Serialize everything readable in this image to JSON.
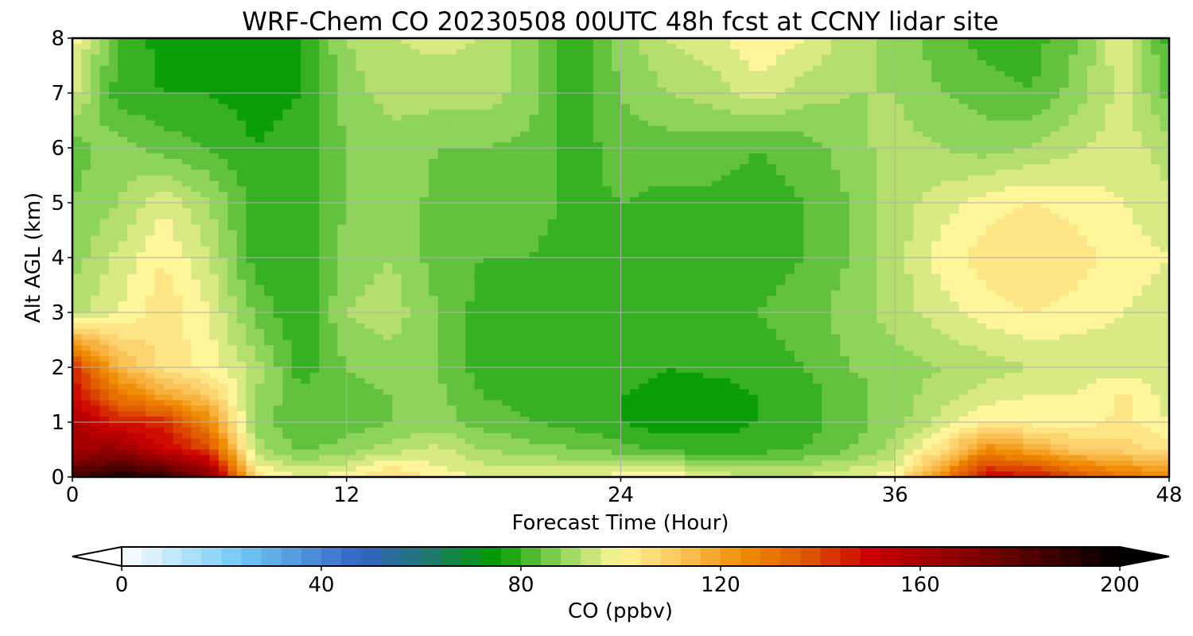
{
  "chart_data": {
    "type": "heatmap",
    "title": "WRF-Chem CO  20230508 00UTC 48h fcst at CCNY lidar site",
    "xlabel": "Forecast Time (Hour)",
    "ylabel": "Alt AGL (km)",
    "xlim": [
      0,
      48
    ],
    "ylim": [
      0,
      8
    ],
    "x_ticks": [
      "0",
      "12",
      "24",
      "36",
      "48"
    ],
    "y_ticks": [
      "0",
      "1",
      "2",
      "3",
      "4",
      "5",
      "6",
      "7",
      "8"
    ],
    "grid": true,
    "colorbar": {
      "label": "CO  (ppbv)",
      "range": [
        0,
        200
      ],
      "ticks": [
        "0",
        "40",
        "80",
        "120",
        "160",
        "200"
      ],
      "extend": "both",
      "orientation": "horizontal",
      "colors": [
        {
          "value": 0,
          "color": "#ffffff"
        },
        {
          "value": 24,
          "color": "#70c8f4"
        },
        {
          "value": 48,
          "color": "#3363c4"
        },
        {
          "value": 62,
          "color": "#1e7a6a"
        },
        {
          "value": 75,
          "color": "#009a00"
        },
        {
          "value": 88,
          "color": "#8ed45a"
        },
        {
          "value": 100,
          "color": "#fff59a"
        },
        {
          "value": 112,
          "color": "#fbc45a"
        },
        {
          "value": 125,
          "color": "#f08a00"
        },
        {
          "value": 137,
          "color": "#e05a00"
        },
        {
          "value": 150,
          "color": "#cc0000"
        },
        {
          "value": 175,
          "color": "#700000"
        },
        {
          "value": 200,
          "color": "#000000"
        }
      ]
    },
    "hours": [
      0,
      2,
      4,
      6,
      8,
      10,
      12,
      14,
      16,
      18,
      20,
      22,
      24,
      26,
      28,
      30,
      32,
      34,
      36,
      38,
      40,
      42,
      44,
      46,
      48
    ],
    "altitudes_km": [
      0,
      0.5,
      1,
      1.5,
      2,
      3,
      4,
      5,
      6,
      7,
      8
    ],
    "co_ppbv": [
      [
        185,
        195,
        190,
        170,
        105,
        98,
        100,
        108,
        100,
        98,
        97,
        98,
        100,
        102,
        96,
        95,
        95,
        97,
        100,
        125,
        150,
        148,
        138,
        130,
        125
      ],
      [
        160,
        165,
        150,
        140,
        92,
        85,
        88,
        92,
        95,
        90,
        88,
        86,
        84,
        80,
        80,
        80,
        82,
        86,
        92,
        105,
        125,
        118,
        110,
        108,
        105
      ],
      [
        160,
        145,
        145,
        125,
        88,
        82,
        84,
        86,
        88,
        84,
        82,
        80,
        78,
        76,
        76,
        78,
        80,
        84,
        88,
        95,
        102,
        100,
        100,
        103,
        98
      ],
      [
        150,
        130,
        118,
        110,
        90,
        83,
        85,
        86,
        87,
        82,
        80,
        80,
        78,
        76,
        76,
        78,
        80,
        84,
        88,
        92,
        96,
        98,
        98,
        103,
        96
      ],
      [
        145,
        115,
        105,
        100,
        92,
        80,
        86,
        88,
        86,
        80,
        79,
        80,
        80,
        78,
        79,
        80,
        82,
        86,
        88,
        90,
        92,
        94,
        95,
        96,
        94
      ],
      [
        92,
        98,
        105,
        98,
        85,
        78,
        90,
        92,
        86,
        80,
        80,
        80,
        81,
        80,
        80,
        82,
        84,
        88,
        92,
        96,
        100,
        102,
        100,
        98,
        96
      ],
      [
        88,
        95,
        102,
        94,
        80,
        78,
        88,
        90,
        84,
        82,
        82,
        80,
        80,
        80,
        80,
        80,
        82,
        86,
        92,
        100,
        104,
        106,
        104,
        100,
        98
      ],
      [
        86,
        90,
        97,
        90,
        80,
        79,
        86,
        88,
        85,
        84,
        84,
        81,
        82,
        81,
        81,
        80,
        82,
        86,
        92,
        96,
        100,
        102,
        100,
        98,
        95
      ],
      [
        84,
        88,
        84,
        82,
        78,
        80,
        86,
        88,
        86,
        86,
        85,
        80,
        84,
        84,
        84,
        82,
        84,
        88,
        92,
        90,
        88,
        90,
        94,
        96,
        92
      ],
      [
        96,
        80,
        78,
        78,
        76,
        78,
        88,
        92,
        92,
        92,
        88,
        78,
        86,
        90,
        92,
        96,
        92,
        90,
        90,
        86,
        84,
        82,
        88,
        96,
        84
      ],
      [
        100,
        82,
        76,
        76,
        76,
        78,
        90,
        94,
        95,
        94,
        88,
        78,
        88,
        94,
        96,
        102,
        98,
        92,
        88,
        84,
        80,
        80,
        86,
        98,
        80
      ]
    ]
  }
}
